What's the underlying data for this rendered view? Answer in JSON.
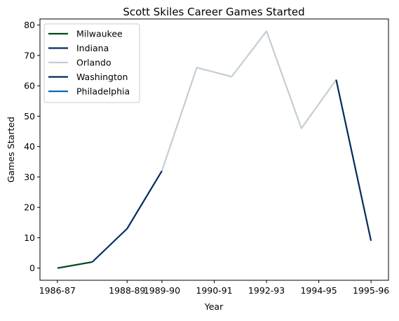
{
  "chart_data": {
    "type": "line",
    "title": "Scott Skiles Career Games Started",
    "xlabel": "Year",
    "ylabel": "Games Started",
    "ylim": [
      -4,
      82
    ],
    "yticks": [
      0,
      10,
      20,
      30,
      40,
      50,
      60,
      70,
      80
    ],
    "x_ticks": [
      "1986-87",
      "1988-89",
      "1989-90",
      "1990-91",
      "1992-93",
      "1994-95",
      "1995-96"
    ],
    "legend_position": "top-left",
    "grid": false,
    "series": [
      {
        "name": "Milwaukee",
        "color": "#00471b",
        "x": [
          0,
          1
        ],
        "values": [
          0,
          2
        ]
      },
      {
        "name": "Indiana",
        "color": "#002d62",
        "x": [
          1,
          2,
          3
        ],
        "values": [
          2,
          13,
          32
        ]
      },
      {
        "name": "Orlando",
        "color": "#c4ced4",
        "x": [
          3,
          4,
          5,
          6,
          7,
          8
        ],
        "values": [
          32,
          66,
          63,
          78,
          46,
          62
        ]
      },
      {
        "name": "Washington",
        "color": "#002b5c",
        "x": [
          8,
          9
        ],
        "values": [
          62,
          9
        ]
      },
      {
        "name": "Philadelphia",
        "color": "#006bb6",
        "x": [],
        "values": []
      }
    ]
  }
}
